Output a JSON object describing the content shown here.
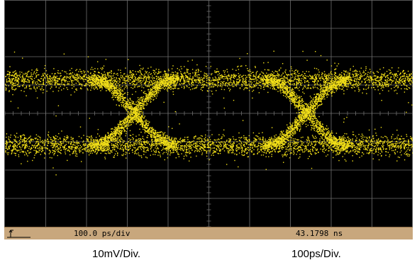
{
  "scope": {
    "status_bar": {
      "timebase": "100.0 ps/div",
      "delay": "43.1798 ns"
    },
    "trigger_icon": "rising-edge-trigger-icon",
    "trace_color": "#f2df18",
    "background_color": "#000000",
    "status_bar_color": "#c8a77d",
    "graticule_divisions": {
      "horizontal": 10,
      "vertical": 8
    }
  },
  "captions": {
    "vertical_scale": "10mV/Div.",
    "horizontal_scale": "100ps/Div."
  }
}
